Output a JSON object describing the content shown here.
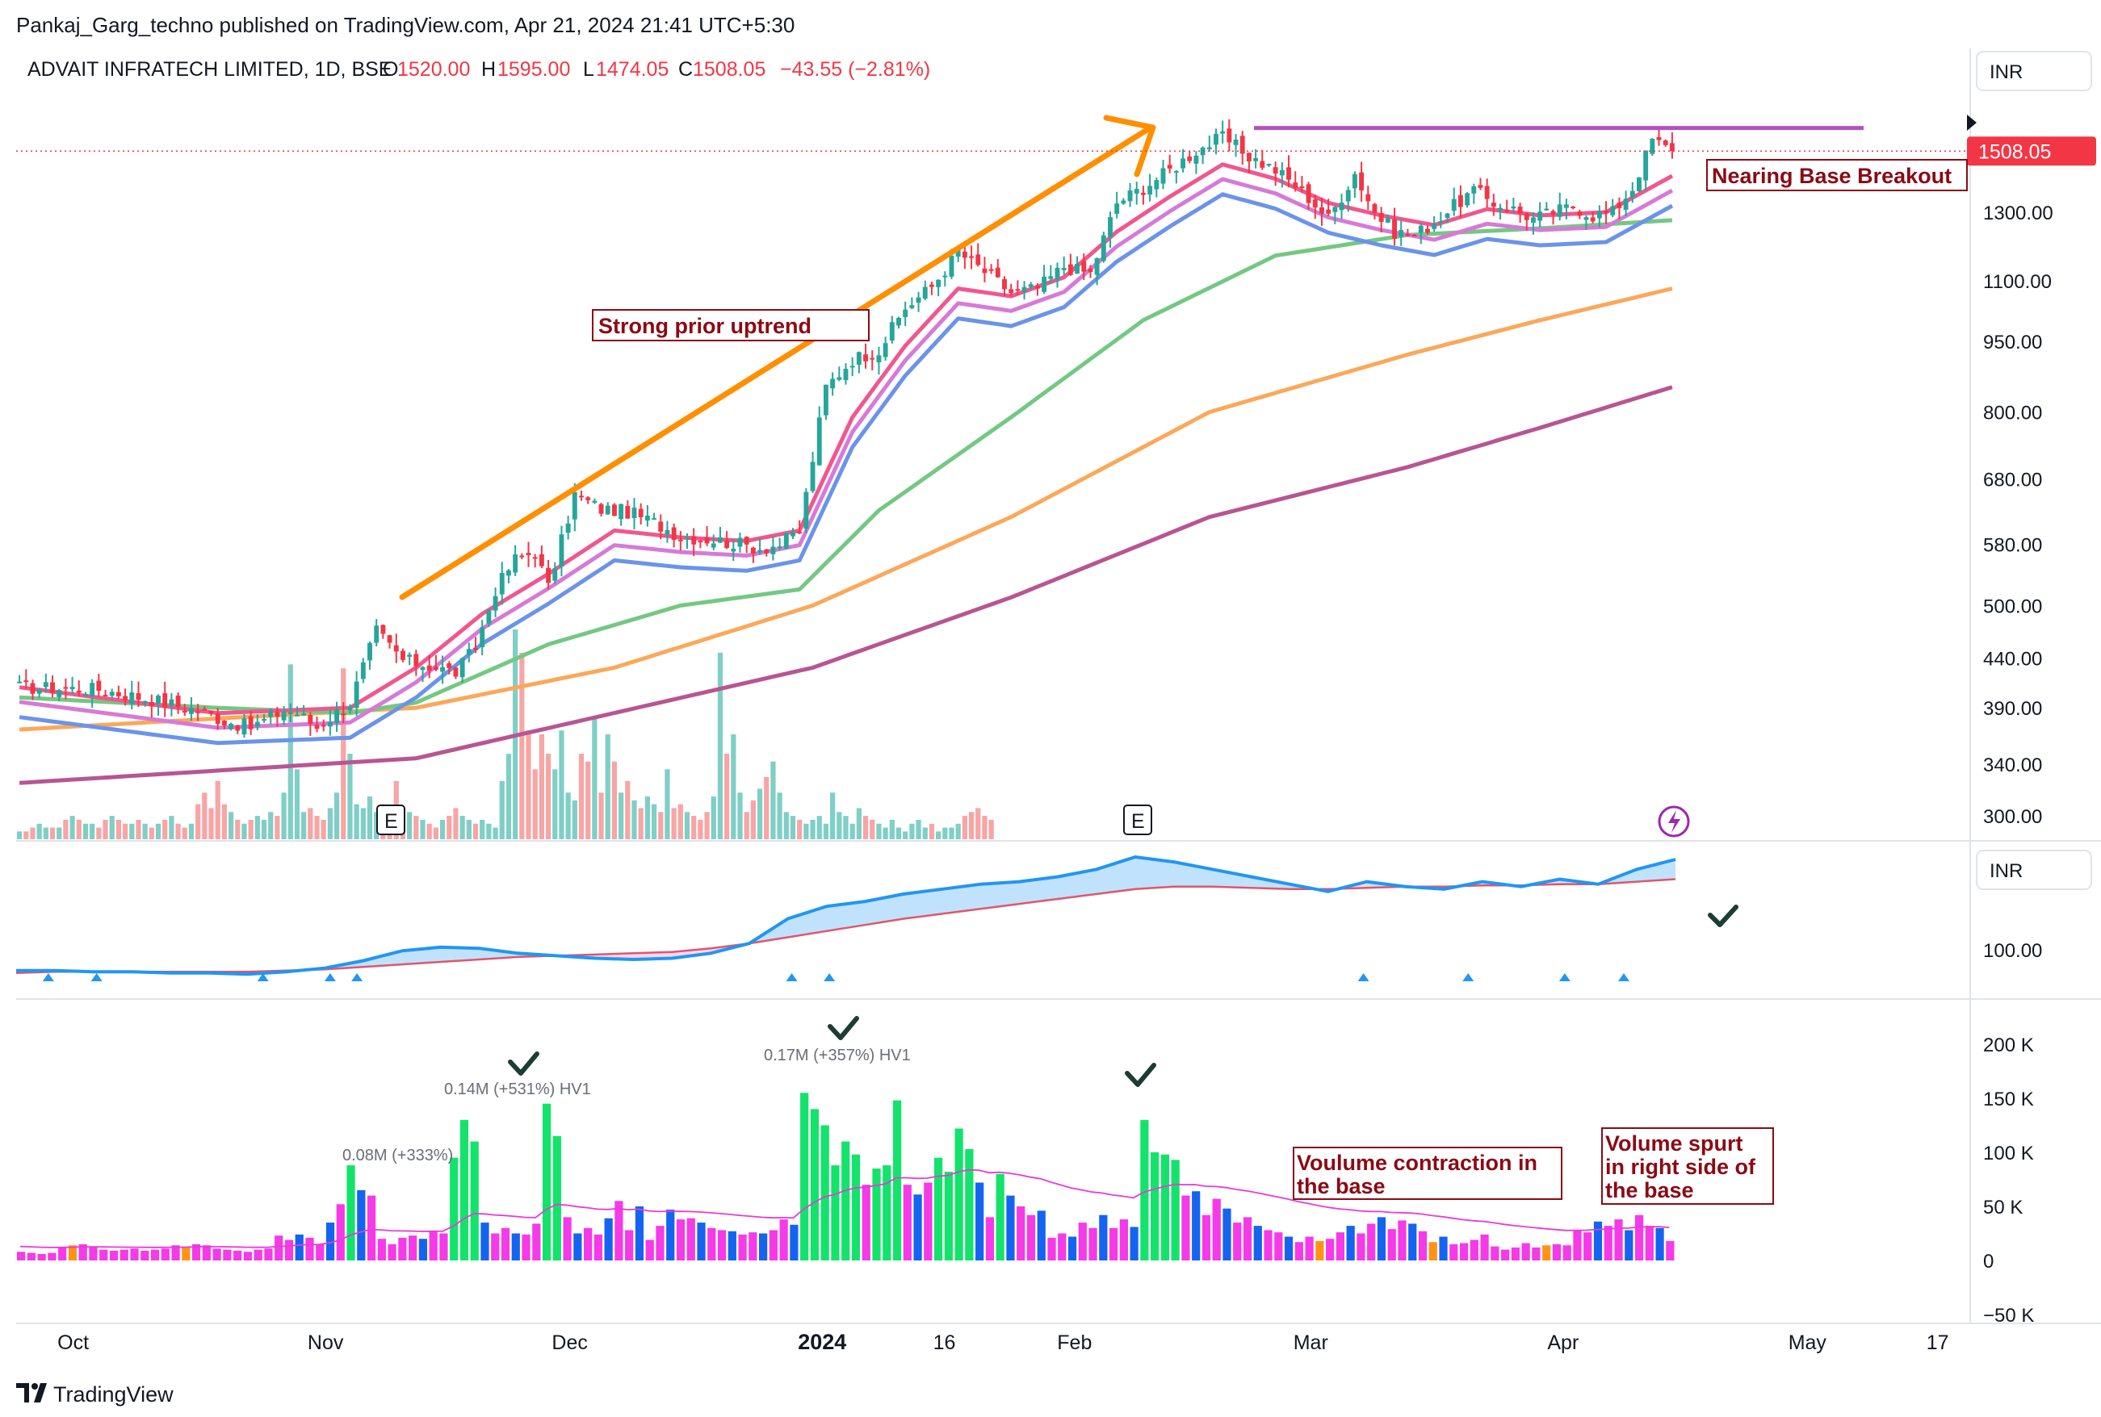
{
  "header": {
    "published": "Pankaj_Garg_techno published on TradingView.com, Apr 21, 2024 21:41 UTC+5:30",
    "symbol": "ADVAIT INFRATECH LIMITED, 1D, BSE",
    "open_label": "O",
    "open": "1520.00",
    "high_label": "H",
    "high": "1595.00",
    "low_label": "L",
    "low": "1474.05",
    "close_label": "C",
    "close": "1508.05",
    "change": "−43.55 (−2.81%)"
  },
  "currency_main": "INR",
  "currency_pane2": "INR",
  "price_badge": "1508.05",
  "logo": "TradingView",
  "colors": {
    "up": "#26a69a",
    "down": "#f23645",
    "vol_up": "#7fcfc6",
    "vol_down": "#f7a5a5",
    "ema1": "#f0578f",
    "ema2": "#d67ad8",
    "ema3": "#6b93ea",
    "sma50": "#74c882",
    "sma100": "#fba85a",
    "sma200": "#b85592",
    "trend_arrow": "#ff8f00",
    "resistance": "#b84fc4",
    "rs_line": "#2196f3",
    "rs_ma": "#e0566b",
    "hv_green": "#14e36b",
    "hv_blue": "#1464f0",
    "hv_magenta": "#f53ae8",
    "hv_orange": "#ff9414",
    "annotation_text": "#8b0a14"
  },
  "annotations": {
    "uptrend": "Strong prior uptrend",
    "breakout": "Nearing Base Breakout",
    "contraction_line1": "Voulume contraction in",
    "contraction_line2": "the base",
    "spurt_line1": "Volume spurt",
    "spurt_line2": "in right side of",
    "spurt_line3": "the base",
    "hv_labels": [
      "0.08M (+333%)",
      "0.14M (+531%) HV1",
      "0.17M (+357%) HV1"
    ],
    "earnings_marker": "E"
  },
  "chart_data": [
    {
      "type": "candlestick",
      "title": "ADVAIT INFRATECH LIMITED, 1D, BSE",
      "scale": "log",
      "y_ticks": [
        "1300.00",
        "1100.00",
        "950.00",
        "800.00",
        "680.00",
        "580.00",
        "500.00",
        "440.00",
        "390.00",
        "340.00",
        "300.00"
      ],
      "y_tick_values": [
        1300,
        1100,
        950,
        800,
        680,
        580,
        500,
        440,
        390,
        340,
        300
      ],
      "x_ticks": [
        "Oct",
        "Nov",
        "Dec",
        "2024",
        "16",
        "Feb",
        "Mar",
        "Apr",
        "May",
        "17"
      ],
      "x_tick_dates": [
        "2023-10-01",
        "2023-11-01",
        "2023-12-01",
        "2024-01-01",
        "2024-01-16",
        "2024-02-01",
        "2024-03-01",
        "2024-04-01",
        "2024-05-01",
        "2024-05-17"
      ],
      "x_range": [
        "2023-09-24",
        "2024-05-21"
      ],
      "last_price": 1508.05,
      "resistance_level": 1595,
      "series_path": [
        [
          0,
          410
        ],
        [
          12,
          408
        ],
        [
          20,
          398
        ],
        [
          28,
          386
        ],
        [
          31,
          378
        ],
        [
          35,
          372
        ],
        [
          40,
          388
        ],
        [
          42,
          385
        ],
        [
          45,
          372
        ],
        [
          50,
          395
        ],
        [
          54,
          470
        ],
        [
          58,
          438
        ],
        [
          62,
          432
        ],
        [
          66,
          425
        ],
        [
          69,
          452
        ],
        [
          72,
          520
        ],
        [
          75,
          560
        ],
        [
          78,
          570
        ],
        [
          80,
          522
        ],
        [
          84,
          655
        ],
        [
          88,
          632
        ],
        [
          92,
          628
        ],
        [
          96,
          612
        ],
        [
          100,
          592
        ],
        [
          104,
          588
        ],
        [
          108,
          582
        ],
        [
          112,
          575
        ],
        [
          115,
          580
        ],
        [
          118,
          600
        ],
        [
          122,
          850
        ],
        [
          126,
          910
        ],
        [
          130,
          930
        ],
        [
          134,
          1030
        ],
        [
          138,
          1085
        ],
        [
          142,
          1180
        ],
        [
          146,
          1125
        ],
        [
          150,
          1070
        ],
        [
          154,
          1080
        ],
        [
          158,
          1140
        ],
        [
          162,
          1120
        ],
        [
          166,
          1330
        ],
        [
          170,
          1380
        ],
        [
          174,
          1440
        ],
        [
          178,
          1510
        ],
        [
          182,
          1560
        ],
        [
          186,
          1490
        ],
        [
          190,
          1440
        ],
        [
          194,
          1370
        ],
        [
          198,
          1280
        ],
        [
          202,
          1430
        ],
        [
          205,
          1300
        ],
        [
          208,
          1240
        ],
        [
          211,
          1230
        ],
        [
          214,
          1270
        ],
        [
          217,
          1320
        ],
        [
          220,
          1370
        ],
        [
          223,
          1330
        ],
        [
          226,
          1310
        ],
        [
          229,
          1280
        ],
        [
          232,
          1300
        ],
        [
          235,
          1320
        ],
        [
          238,
          1290
        ],
        [
          241,
          1300
        ],
        [
          244,
          1380
        ],
        [
          247,
          1550
        ],
        [
          250,
          1508
        ]
      ],
      "ema_fast": [
        [
          0,
          410
        ],
        [
          30,
          385
        ],
        [
          50,
          390
        ],
        [
          60,
          430
        ],
        [
          70,
          490
        ],
        [
          80,
          540
        ],
        [
          90,
          600
        ],
        [
          100,
          590
        ],
        [
          110,
          585
        ],
        [
          118,
          600
        ],
        [
          126,
          790
        ],
        [
          134,
          940
        ],
        [
          142,
          1080
        ],
        [
          150,
          1060
        ],
        [
          158,
          1110
        ],
        [
          166,
          1240
        ],
        [
          174,
          1350
        ],
        [
          182,
          1460
        ],
        [
          190,
          1410
        ],
        [
          198,
          1330
        ],
        [
          206,
          1290
        ],
        [
          214,
          1260
        ],
        [
          222,
          1310
        ],
        [
          230,
          1290
        ],
        [
          240,
          1300
        ],
        [
          250,
          1420
        ]
      ],
      "sma50": [
        [
          0,
          400
        ],
        [
          30,
          390
        ],
        [
          50,
          385
        ],
        [
          60,
          395
        ],
        [
          80,
          455
        ],
        [
          100,
          500
        ],
        [
          118,
          520
        ],
        [
          130,
          630
        ],
        [
          150,
          790
        ],
        [
          170,
          1000
        ],
        [
          190,
          1170
        ],
        [
          210,
          1230
        ],
        [
          230,
          1250
        ],
        [
          250,
          1275
        ]
      ],
      "sma100": [
        [
          0,
          370
        ],
        [
          30,
          380
        ],
        [
          60,
          390
        ],
        [
          90,
          430
        ],
        [
          120,
          500
        ],
        [
          150,
          620
        ],
        [
          180,
          800
        ],
        [
          210,
          920
        ],
        [
          230,
          1000
        ],
        [
          250,
          1080
        ]
      ],
      "sma200": [
        [
          0,
          325
        ],
        [
          60,
          345
        ],
        [
          120,
          430
        ],
        [
          150,
          510
        ],
        [
          180,
          620
        ],
        [
          210,
          700
        ],
        [
          230,
          770
        ],
        [
          250,
          850
        ]
      ],
      "volume": [
        0.02,
        0.02,
        0.03,
        0.04,
        0.03,
        0.03,
        0.03,
        0.05,
        0.06,
        0.05,
        0.04,
        0.04,
        0.03,
        0.05,
        0.06,
        0.05,
        0.04,
        0.04,
        0.05,
        0.04,
        0.03,
        0.04,
        0.05,
        0.06,
        0.04,
        0.03,
        0.04,
        0.09,
        0.12,
        0.08,
        0.15,
        0.09,
        0.07,
        0.05,
        0.04,
        0.05,
        0.06,
        0.05,
        0.07,
        0.06,
        0.12,
        0.45,
        0.18,
        0.07,
        0.08,
        0.06,
        0.05,
        0.08,
        0.12,
        0.44,
        0.22,
        0.09,
        0.08,
        0.11,
        0.07,
        0.09,
        0.05,
        0.15,
        0.06,
        0.07,
        0.06,
        0.05,
        0.04,
        0.03,
        0.05,
        0.06,
        0.08,
        0.06,
        0.05,
        0.04,
        0.05,
        0.04,
        0.03,
        0.15,
        0.22,
        0.54,
        0.48,
        0.28,
        0.18,
        0.27,
        0.22,
        0.18,
        0.28,
        0.12,
        0.1,
        0.22,
        0.2,
        0.31,
        0.12,
        0.27,
        0.2,
        0.12,
        0.15,
        0.1,
        0.08,
        0.11,
        0.09,
        0.07,
        0.18,
        0.08,
        0.09,
        0.07,
        0.06,
        0.05,
        0.07,
        0.11,
        0.48,
        0.22,
        0.27,
        0.12,
        0.07,
        0.1,
        0.13,
        0.16,
        0.2,
        0.12,
        0.07,
        0.06,
        0.05,
        0.04,
        0.05,
        0.06,
        0.04,
        0.12,
        0.07,
        0.06,
        0.04,
        0.08,
        0.06,
        0.05,
        0.04,
        0.03,
        0.05,
        0.03,
        0.02,
        0.04,
        0.05,
        0.03,
        0.04,
        0.02,
        0.03,
        0.03,
        0.04,
        0.06,
        0.07,
        0.08,
        0.06,
        0.05
      ]
    },
    {
      "type": "line",
      "title": "",
      "y_ticks": [
        "100.00"
      ],
      "series": [
        {
          "values": [
            0.08,
            0.08,
            0.07,
            0.07,
            0.06,
            0.06,
            0.05,
            0.07,
            0.1,
            0.16,
            0.24,
            0.27,
            0.26,
            0.22,
            0.2,
            0.18,
            0.17,
            0.18,
            0.22,
            0.3,
            0.5,
            0.6,
            0.64,
            0.7,
            0.74,
            0.78,
            0.8,
            0.84,
            0.9,
            1.0,
            0.96,
            0.9,
            0.84,
            0.78,
            0.72,
            0.8,
            0.76,
            0.74,
            0.8,
            0.76,
            0.82,
            0.78,
            0.9,
            0.98
          ]
        },
        {
          "values": [
            0.06,
            0.07,
            0.07,
            0.07,
            0.07,
            0.07,
            0.07,
            0.08,
            0.09,
            0.11,
            0.13,
            0.15,
            0.17,
            0.19,
            0.2,
            0.21,
            0.22,
            0.23,
            0.26,
            0.3,
            0.35,
            0.4,
            0.45,
            0.5,
            0.54,
            0.58,
            0.62,
            0.66,
            0.7,
            0.74,
            0.76,
            0.76,
            0.75,
            0.74,
            0.74,
            0.75,
            0.76,
            0.76,
            0.77,
            0.77,
            0.78,
            0.78,
            0.8,
            0.82
          ]
        }
      ],
      "markers": [
        "up-triangle"
      ]
    },
    {
      "type": "bar",
      "title": "",
      "y_ticks": [
        "200 K",
        "150 K",
        "100 K",
        "50 K",
        "0",
        "−50 K"
      ],
      "y_tick_values": [
        200000,
        150000,
        100000,
        50000,
        0,
        -50000
      ],
      "ylim": [
        -50000,
        200000
      ],
      "values": [
        8,
        7,
        6,
        7,
        12,
        14,
        15,
        13,
        10,
        9,
        10,
        11,
        9,
        10,
        11,
        14,
        12,
        15,
        14,
        11,
        10,
        9,
        8,
        10,
        11,
        23,
        19,
        24,
        21,
        15,
        35,
        52,
        88,
        65,
        60,
        20,
        15,
        21,
        23,
        20,
        27,
        25,
        95,
        130,
        110,
        35,
        25,
        30,
        25,
        24,
        34,
        145,
        115,
        40,
        25,
        30,
        24,
        39,
        55,
        28,
        50,
        19,
        32,
        47,
        38,
        39,
        35,
        30,
        28,
        27,
        24,
        26,
        25,
        28,
        38,
        33,
        155,
        140,
        125,
        88,
        110,
        98,
        70,
        85,
        88,
        148,
        70,
        61,
        72,
        95,
        82,
        122,
        103,
        72,
        40,
        80,
        60,
        50,
        42,
        46,
        21,
        25,
        22,
        35,
        30,
        42,
        30,
        38,
        31,
        130,
        100,
        98,
        93,
        60,
        64,
        42,
        57,
        48,
        35,
        40,
        32,
        28,
        26,
        22,
        17,
        22,
        18,
        20,
        26,
        32,
        25,
        34,
        40,
        29,
        37,
        34,
        27,
        17,
        22,
        15,
        16,
        19,
        24,
        13,
        10,
        12,
        16,
        12,
        14,
        15,
        14,
        28,
        26,
        36,
        32,
        38,
        28,
        42,
        32,
        30,
        18
      ]
    }
  ]
}
